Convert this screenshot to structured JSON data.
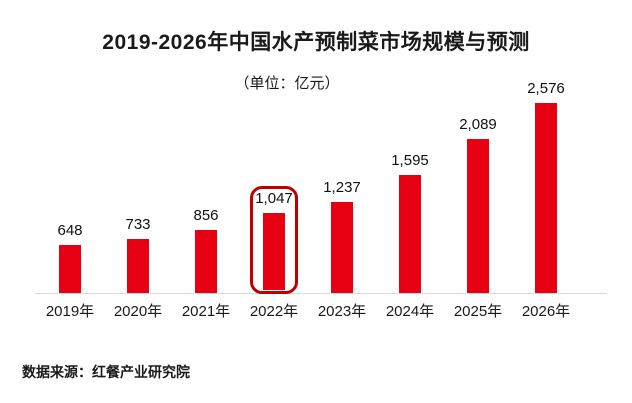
{
  "title": "2019-2026年中国水产预制菜市场规模与预测",
  "subtitle": "（单位：亿元）",
  "source_note": "数据来源：红餐产业研究院",
  "chart_data": {
    "type": "bar",
    "title": "2019-2026年中国水产预制菜市场规模与预测",
    "subtitle": "（单位：亿元）",
    "unit": "亿元",
    "categories": [
      "2019年",
      "2020年",
      "2021年",
      "2022年",
      "2023年",
      "2024年",
      "2025年",
      "2026年"
    ],
    "values": [
      648,
      733,
      856,
      1047,
      1237,
      1595,
      2089,
      2576
    ],
    "value_labels": [
      "648",
      "733",
      "856",
      "1,047",
      "1,237",
      "1,595",
      "2,089",
      "2,576"
    ],
    "highlighted_category": "2022年",
    "highlighted_index": 3,
    "bar_color": "#e60012",
    "highlight_border_color": "#c00000",
    "axis_line_color": "#d9d9d9",
    "label_color": "#111111",
    "ylim": [
      0,
      2576
    ],
    "grid": false,
    "legend": false,
    "source": "数据来源：红餐产业研究院"
  }
}
